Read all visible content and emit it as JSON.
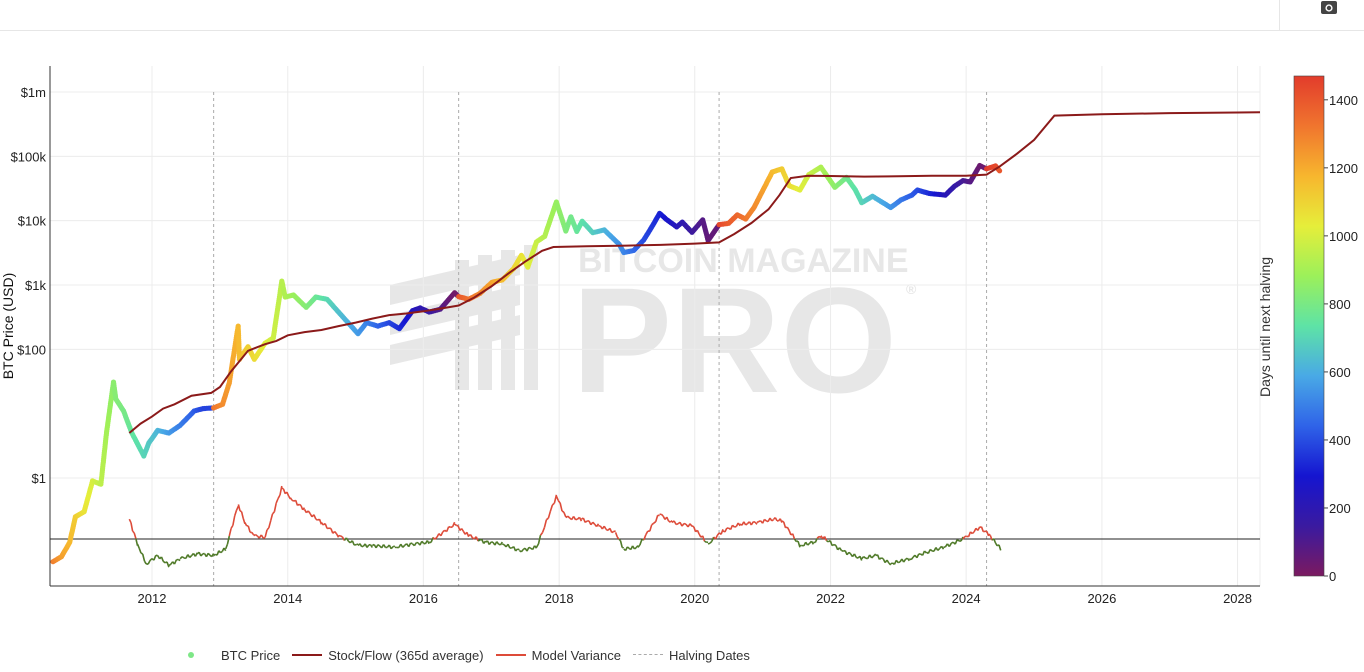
{
  "colors": {
    "btc_price": "#7ee787",
    "stock_flow": "#8b1a1a",
    "model_variance": "#dd4b39",
    "variance_negative": "#4f7a28",
    "halving": "#aaaaaa"
  },
  "icons": {
    "camera": "camera-icon"
  },
  "watermark": {
    "line1": "BITCOIN MAGAZINE",
    "line2": "PRO",
    "mark": "®"
  },
  "legend": {
    "btc_price": "BTC Price",
    "stock_flow": "Stock/Flow (365d average)",
    "model_variance": "Model Variance",
    "halving": "Halving Dates"
  },
  "chart_data": {
    "type": "scatter",
    "y_scale": "log",
    "ylabel": "BTC Price (USD)",
    "xlim": [
      "2010-07-01",
      "2028-05-01"
    ],
    "y_ticks": [
      {
        "value": 1,
        "label": "$1"
      },
      {
        "value": 100,
        "label": "$100"
      },
      {
        "value": 1000,
        "label": "$1k"
      },
      {
        "value": 10000,
        "label": "$10k"
      },
      {
        "value": 100000,
        "label": "$100k"
      },
      {
        "value": 1000000,
        "label": "$1m"
      }
    ],
    "x_ticks": [
      "2012",
      "2014",
      "2016",
      "2018",
      "2020",
      "2022",
      "2024",
      "2026",
      "2028"
    ],
    "grid": true,
    "halving_dates": [
      "2012-11-28",
      "2016-07-09",
      "2020-05-11",
      "2024-04-20"
    ],
    "colorbar": {
      "label": "Days until next halving",
      "min": 0,
      "max": 1470,
      "ticks": [
        0,
        200,
        400,
        600,
        800,
        1000,
        1200,
        1400
      ],
      "colorscale": [
        "#7b1a60",
        "#3a1aa0",
        "#1515d0",
        "#2f63e8",
        "#49a9e6",
        "#5ee3a6",
        "#9cf05a",
        "#e6ee3a",
        "#f7b62e",
        "#f0752e",
        "#e23c2c"
      ]
    },
    "series": [
      {
        "name": "BTC Price",
        "x": [
          "2010-07-17",
          "2010-09-01",
          "2010-10-15",
          "2010-11-15",
          "2011-01-01",
          "2011-02-15",
          "2011-04-01",
          "2011-05-01",
          "2011-06-08",
          "2011-06-20",
          "2011-08-01",
          "2011-09-15",
          "2011-11-18",
          "2011-12-15",
          "2012-02-01",
          "2012-04-01",
          "2012-06-01",
          "2012-08-15",
          "2012-10-01",
          "2012-11-28",
          "2013-01-15",
          "2013-02-20",
          "2013-04-09",
          "2013-04-16",
          "2013-06-01",
          "2013-07-05",
          "2013-09-01",
          "2013-10-15",
          "2013-11-30",
          "2013-12-18",
          "2014-02-01",
          "2014-04-10",
          "2014-06-01",
          "2014-08-01",
          "2014-10-01",
          "2015-01-14",
          "2015-03-01",
          "2015-05-01",
          "2015-07-01",
          "2015-08-25",
          "2015-11-04",
          "2015-12-15",
          "2016-02-01",
          "2016-04-01",
          "2016-06-17",
          "2016-07-09",
          "2016-09-01",
          "2016-11-01",
          "2017-01-04",
          "2017-03-01",
          "2017-05-01",
          "2017-06-12",
          "2017-07-16",
          "2017-09-01",
          "2017-10-15",
          "2017-12-17",
          "2018-02-06",
          "2018-03-05",
          "2018-04-06",
          "2018-05-05",
          "2018-07-01",
          "2018-09-01",
          "2018-11-20",
          "2018-12-15",
          "2019-02-07",
          "2019-04-01",
          "2019-05-15",
          "2019-06-26",
          "2019-08-01",
          "2019-09-26",
          "2019-10-26",
          "2019-12-17",
          "2020-02-13",
          "2020-03-13",
          "2020-05-11",
          "2020-07-01",
          "2020-08-17",
          "2020-10-01",
          "2020-11-15",
          "2020-12-31",
          "2021-02-21",
          "2021-04-14",
          "2021-05-23",
          "2021-07-20",
          "2021-09-06",
          "2021-11-10",
          "2022-01-24",
          "2022-03-28",
          "2022-05-15",
          "2022-06-18",
          "2022-08-15",
          "2022-11-21",
          "2023-01-15",
          "2023-03-15",
          "2023-04-14",
          "2023-06-15",
          "2023-09-11",
          "2023-10-31",
          "2023-12-15",
          "2024-01-23",
          "2024-03-14",
          "2024-04-20",
          "2024-06-07",
          "2024-07-05"
        ],
        "y": [
          0.05,
          0.06,
          0.1,
          0.25,
          0.3,
          0.9,
          0.8,
          5,
          31,
          17,
          11,
          5,
          2.2,
          3.5,
          5.5,
          5,
          6.6,
          11,
          12,
          12.3,
          14,
          30,
          230,
          70,
          110,
          70,
          125,
          150,
          1150,
          650,
          700,
          450,
          650,
          600,
          380,
          175,
          260,
          230,
          260,
          210,
          400,
          440,
          380,
          420,
          760,
          660,
          600,
          740,
          1100,
          1200,
          1800,
          2900,
          1900,
          4700,
          5700,
          19500,
          6900,
          11500,
          6800,
          9800,
          6500,
          7200,
          4300,
          3200,
          3450,
          5000,
          8000,
          13000,
          10500,
          8000,
          9500,
          6600,
          10300,
          4900,
          8700,
          9100,
          12300,
          10600,
          16000,
          29000,
          57000,
          64000,
          35000,
          30000,
          52000,
          68000,
          33000,
          47000,
          30000,
          19000,
          24000,
          16000,
          21000,
          25000,
          30000,
          26500,
          25000,
          34500,
          42000,
          40000,
          72000,
          64000,
          71000,
          57000
        ],
        "days_to_halving": [
          1300,
          1230,
          1170,
          1120,
          1060,
          1000,
          950,
          900,
          845,
          830,
          800,
          750,
          700,
          670,
          620,
          560,
          500,
          430,
          380,
          1320,
          1270,
          1230,
          1170,
          1160,
          1110,
          1080,
          1020,
          980,
          940,
          920,
          880,
          830,
          770,
          710,
          650,
          560,
          510,
          450,
          390,
          340,
          250,
          200,
          160,
          95,
          20,
          1400,
          1340,
          1280,
          1220,
          1160,
          1100,
          1060,
          1020,
          970,
          930,
          870,
          820,
          790,
          760,
          730,
          680,
          620,
          540,
          515,
          460,
          400,
          360,
          320,
          285,
          228,
          198,
          145,
          88,
          58,
          1440,
          1390,
          1360,
          1320,
          1275,
          1230,
          1170,
          1120,
          1080,
          1020,
          980,
          920,
          850,
          780,
          730,
          700,
          640,
          550,
          490,
          430,
          400,
          340,
          220,
          170,
          125,
          87,
          36,
          1470,
          1440,
          1390
        ]
      },
      {
        "name": "Stock/Flow (365d average)",
        "x": [
          "2011-09-01",
          "2011-11-01",
          "2012-01-01",
          "2012-03-01",
          "2012-05-01",
          "2012-08-01",
          "2012-11-15",
          "2013-01-01",
          "2013-03-01",
          "2013-06-01",
          "2013-09-01",
          "2013-11-01",
          "2014-01-01",
          "2014-04-01",
          "2014-07-01",
          "2014-10-01",
          "2015-01-01",
          "2015-04-01",
          "2015-07-01",
          "2015-10-01",
          "2016-01-01",
          "2016-04-01",
          "2016-07-09",
          "2016-10-01",
          "2017-01-01",
          "2017-04-01",
          "2017-07-01",
          "2017-10-01",
          "2017-12-01",
          "2018-06-01",
          "2019-01-01",
          "2019-07-01",
          "2020-01-01",
          "2020-05-11",
          "2020-08-01",
          "2020-11-01",
          "2021-02-01",
          "2021-04-01",
          "2021-06-01",
          "2021-09-01",
          "2022-01-01",
          "2022-07-01",
          "2023-01-01",
          "2023-07-01",
          "2024-01-01",
          "2024-04-20",
          "2024-07-01",
          "2024-10-01",
          "2025-01-01",
          "2025-04-20",
          "2026-01-01",
          "2027-01-01",
          "2028-01-01",
          "2028-05-01"
        ],
        "y": [
          5,
          7,
          9,
          12,
          14,
          19,
          21,
          26,
          45,
          95,
          120,
          135,
          165,
          185,
          200,
          230,
          260,
          300,
          340,
          360,
          390,
          430,
          480,
          640,
          950,
          1500,
          2300,
          3400,
          3900,
          4000,
          4100,
          4200,
          4400,
          4600,
          6200,
          9200,
          15000,
          25000,
          46000,
          50000,
          49500,
          48500,
          49000,
          50000,
          50000,
          52000,
          70000,
          110000,
          180000,
          430000,
          450000,
          470000,
          480000,
          485000
        ]
      },
      {
        "name": "Model Variance",
        "x": [
          "2011-09-01",
          "2011-10-15",
          "2011-12-01",
          "2012-02-01",
          "2012-04-01",
          "2012-06-01",
          "2012-09-01",
          "2012-11-28",
          "2013-02-01",
          "2013-04-10",
          "2013-05-15",
          "2013-07-01",
          "2013-09-01",
          "2013-11-30",
          "2014-01-15",
          "2014-04-01",
          "2014-07-01",
          "2014-10-01",
          "2015-01-15",
          "2015-04-01",
          "2015-08-01",
          "2015-11-04",
          "2016-02-01",
          "2016-06-17",
          "2016-09-01",
          "2016-12-01",
          "2017-03-01",
          "2017-06-01",
          "2017-09-01",
          "2017-12-17",
          "2018-02-06",
          "2018-05-01",
          "2018-08-01",
          "2018-11-01",
          "2018-12-15",
          "2019-03-01",
          "2019-06-26",
          "2019-09-01",
          "2019-12-17",
          "2020-03-13",
          "2020-06-01",
          "2020-09-01",
          "2020-12-01",
          "2021-03-01",
          "2021-04-14",
          "2021-07-20",
          "2021-10-01",
          "2021-11-10",
          "2022-03-01",
          "2022-06-18",
          "2022-09-01",
          "2022-11-21",
          "2023-03-01",
          "2023-06-01",
          "2023-09-01",
          "2023-12-15",
          "2024-03-14",
          "2024-05-01",
          "2024-07-05"
        ],
        "y": [
          1.2,
          -0.3,
          -1.5,
          -1.0,
          -1.6,
          -1.2,
          -0.9,
          -1.0,
          -0.6,
          2.1,
          1.0,
          0.2,
          0.1,
          3.1,
          2.5,
          1.8,
          1.0,
          0.2,
          -0.4,
          -0.4,
          -0.5,
          -0.3,
          -0.2,
          0.9,
          0.2,
          -0.2,
          -0.3,
          -0.7,
          -0.5,
          2.6,
          1.3,
          1.2,
          0.8,
          0.4,
          -0.6,
          -0.5,
          1.5,
          1.0,
          0.8,
          -0.3,
          0.5,
          0.9,
          1.0,
          1.2,
          1.1,
          -0.4,
          -0.2,
          0.2,
          -0.7,
          -1.2,
          -1.0,
          -1.5,
          -1.2,
          -0.8,
          -0.5,
          0.0,
          0.7,
          0.3,
          -0.6
        ]
      }
    ]
  }
}
